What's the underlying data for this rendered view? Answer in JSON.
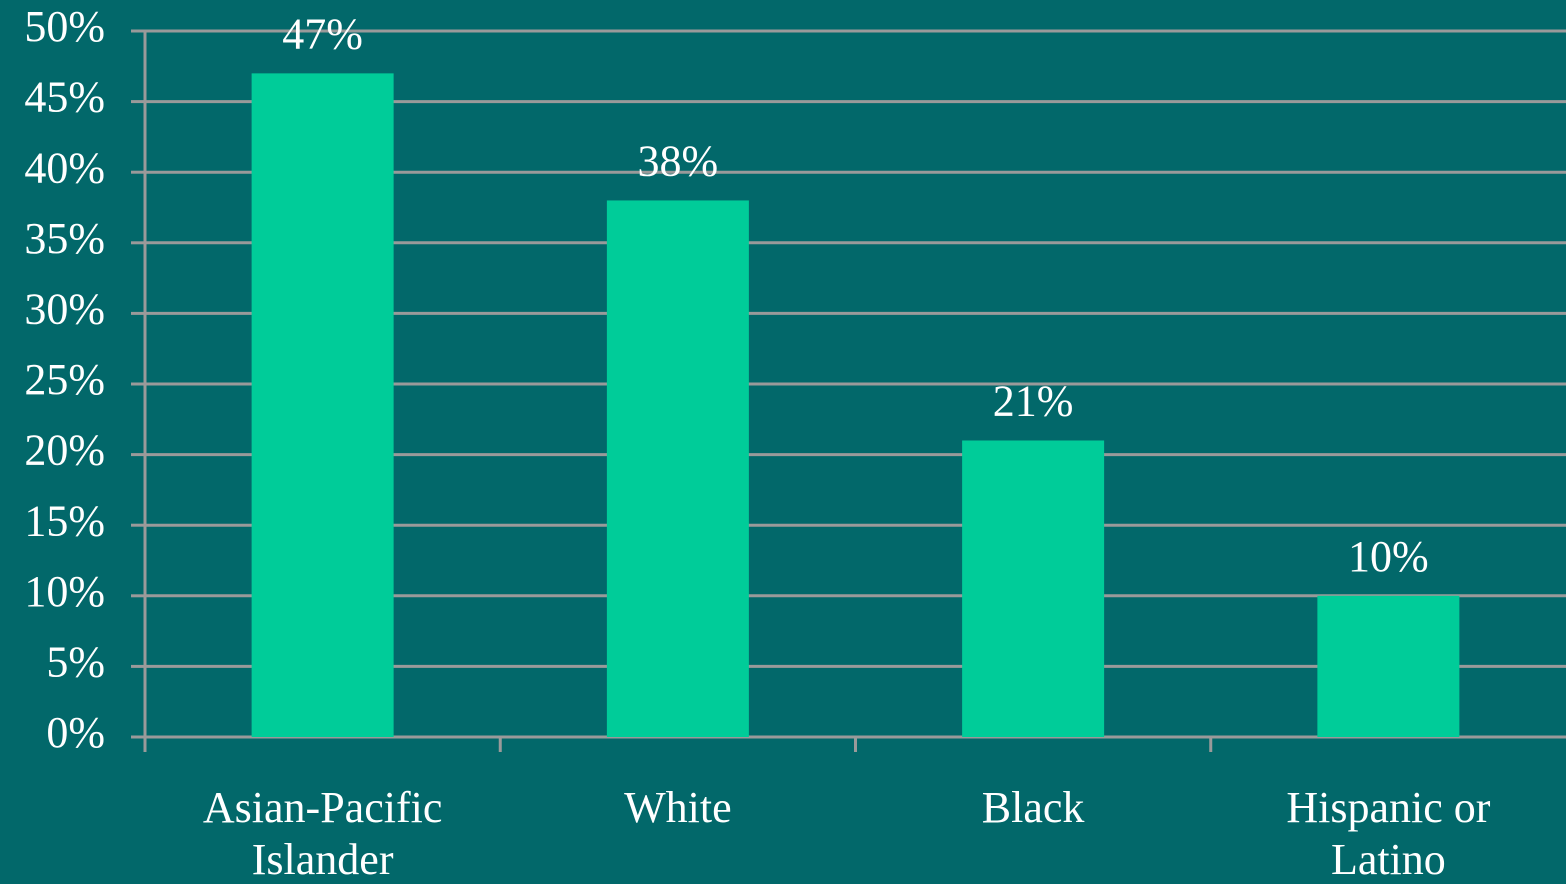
{
  "chart_data": {
    "type": "bar",
    "categories": [
      "Asian-Pacific Islander",
      "White",
      "Black",
      "Hispanic or Latino"
    ],
    "values": [
      47,
      38,
      21,
      10
    ],
    "value_labels": [
      "47%",
      "38%",
      "21%",
      "10%"
    ],
    "color": "#00cc99",
    "ylim": [
      0,
      50
    ],
    "yticks": [
      {
        "value": 0,
        "label": "0%"
      },
      {
        "value": 5,
        "label": "5%"
      },
      {
        "value": 10,
        "label": "10%"
      },
      {
        "value": 15,
        "label": "15%"
      },
      {
        "value": 20,
        "label": "20%"
      },
      {
        "value": 25,
        "label": "25%"
      },
      {
        "value": 30,
        "label": "30%"
      },
      {
        "value": 35,
        "label": "35%"
      },
      {
        "value": 40,
        "label": "40%"
      },
      {
        "value": 45,
        "label": "45%"
      },
      {
        "value": 50,
        "label": "50%"
      }
    ],
    "grid": true
  }
}
